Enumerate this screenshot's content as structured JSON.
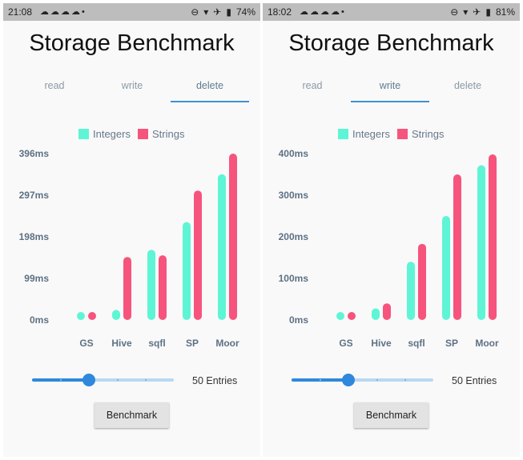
{
  "colors": {
    "integers": "#5ef5d6",
    "strings": "#f6547d",
    "accent": "#2f88dc",
    "statusbar": "#bdbdbd"
  },
  "screens": [
    {
      "status": {
        "time": "21:08",
        "battery": "74%",
        "icons": [
          "notification-icon",
          "notification-icon",
          "notification-icon",
          "notification-icon",
          "dot-icon",
          "do-not-disturb-icon",
          "wifi-icon",
          "airplane-icon",
          "battery-icon"
        ]
      },
      "title": "Storage Benchmark",
      "tabs": [
        {
          "label": "read",
          "active": false
        },
        {
          "label": "write",
          "active": false
        },
        {
          "label": "delete",
          "active": true
        }
      ],
      "legend": [
        "Integers",
        "Strings"
      ],
      "chart_data": {
        "type": "bar",
        "categories": [
          "GS",
          "Hive",
          "sqfl",
          "SP",
          "Moor"
        ],
        "series": [
          {
            "name": "Integers",
            "values": [
              14,
              24,
              167,
              233,
              347
            ]
          },
          {
            "name": "Strings",
            "values": [
              12,
              150,
              154,
              308,
              396
            ]
          }
        ],
        "yticks": [
          "0ms",
          "99ms",
          "198ms",
          "297ms",
          "396ms"
        ],
        "ylim": [
          0,
          396
        ]
      },
      "slider": {
        "value": 50,
        "fraction": 0.4,
        "label": "50 Entries"
      },
      "button_label": "Benchmark"
    },
    {
      "status": {
        "time": "18:02",
        "battery": "81%",
        "icons": [
          "notification-icon",
          "notification-icon",
          "notification-icon",
          "notification-icon",
          "dot-icon",
          "do-not-disturb-icon",
          "wifi-icon",
          "airplane-icon",
          "battery-icon"
        ]
      },
      "title": "Storage Benchmark",
      "tabs": [
        {
          "label": "read",
          "active": false
        },
        {
          "label": "write",
          "active": true
        },
        {
          "label": "delete",
          "active": false
        }
      ],
      "legend": [
        "Integers",
        "Strings"
      ],
      "chart_data": {
        "type": "bar",
        "categories": [
          "GS",
          "Hive",
          "sqfl",
          "SP",
          "Moor"
        ],
        "series": [
          {
            "name": "Integers",
            "values": [
              12,
              28,
              140,
              250,
              372
            ]
          },
          {
            "name": "Strings",
            "values": [
              13,
              40,
              183,
              350,
              398
            ]
          }
        ],
        "yticks": [
          "0ms",
          "100ms",
          "200ms",
          "300ms",
          "400ms"
        ],
        "ylim": [
          0,
          400
        ]
      },
      "slider": {
        "value": 50,
        "fraction": 0.4,
        "label": "50 Entries"
      },
      "button_label": "Benchmark"
    }
  ]
}
